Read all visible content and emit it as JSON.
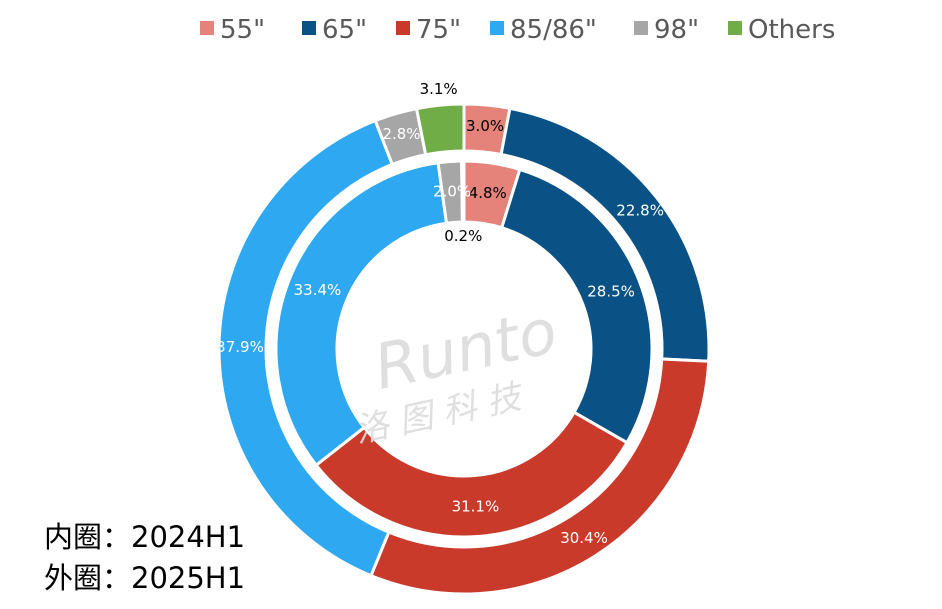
{
  "chart_data": {
    "type": "pie",
    "variant": "double-donut",
    "categories": [
      "55\"",
      "65\"",
      "75\"",
      "85/86\"",
      "98\"",
      "Others"
    ],
    "colors": [
      "#E5837A",
      "#0A5285",
      "#C93A2B",
      "#2EA8F0",
      "#A6A6A6",
      "#70AD47"
    ],
    "series": [
      {
        "ring": "inner",
        "values": [
          4.8,
          28.5,
          31.1,
          33.4,
          2.0,
          0.2
        ]
      },
      {
        "ring": "outer",
        "values": [
          3.0,
          22.8,
          30.4,
          37.9,
          2.8,
          3.1
        ]
      }
    ],
    "legend_position": "top",
    "watermark": {
      "latin": "Runto",
      "cjk": "洛 图 科 技"
    }
  },
  "notes": {
    "inner": "内圈：2024H1",
    "outer": "外圈：2025H1"
  }
}
